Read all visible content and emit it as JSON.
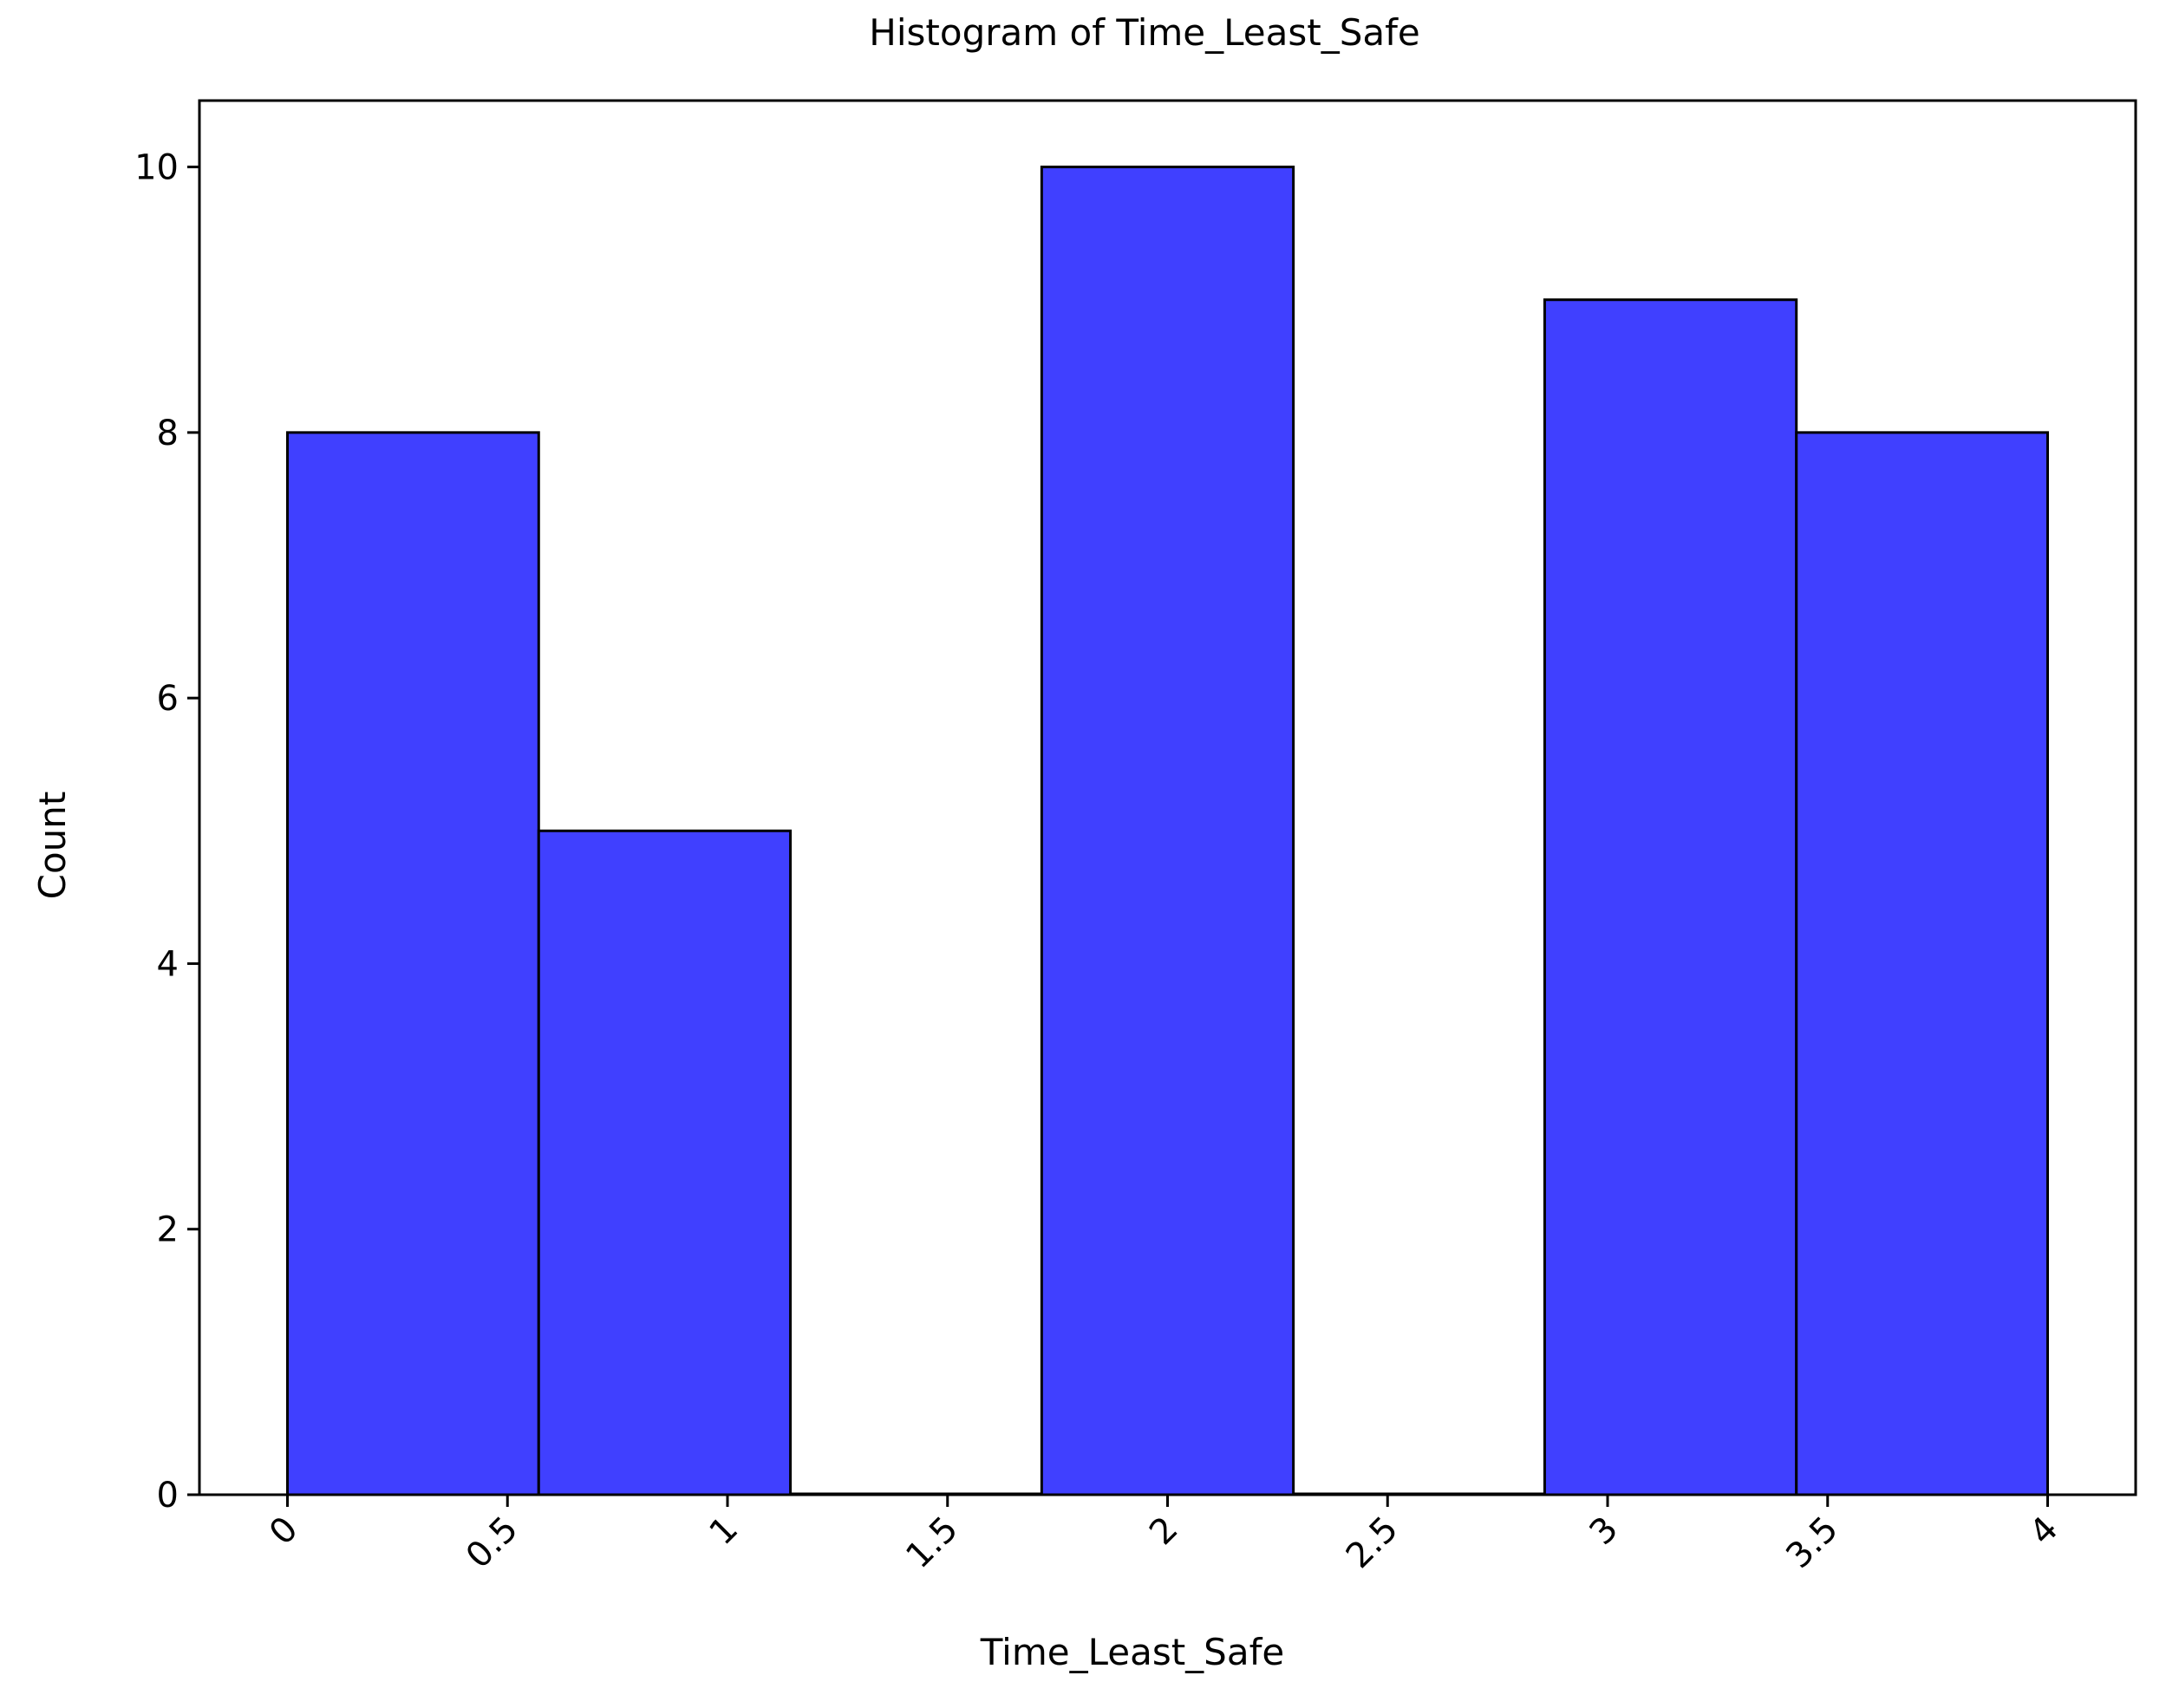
{
  "chart_data": {
    "type": "bar",
    "title": "Histogram of Time_Least_Safe",
    "xlabel": "Time_Least_Safe",
    "ylabel": "Count",
    "bins": [
      {
        "start": 0.0,
        "end": 0.571,
        "count": 8
      },
      {
        "start": 0.571,
        "end": 1.143,
        "count": 5
      },
      {
        "start": 1.143,
        "end": 1.714,
        "count": 0
      },
      {
        "start": 1.714,
        "end": 2.286,
        "count": 10
      },
      {
        "start": 2.286,
        "end": 2.857,
        "count": 0
      },
      {
        "start": 2.857,
        "end": 3.429,
        "count": 9
      },
      {
        "start": 3.429,
        "end": 4.0,
        "count": 8
      }
    ],
    "xlim": [
      -0.2,
      4.2
    ],
    "ylim": [
      0,
      10.5
    ],
    "xticks": [
      0,
      0.5,
      1,
      1.5,
      2,
      2.5,
      3,
      3.5,
      4
    ],
    "xtick_labels": [
      "0",
      "0.5",
      "1",
      "1.5",
      "2",
      "2.5",
      "3",
      "3.5",
      "4"
    ],
    "yticks": [
      0,
      2,
      4,
      6,
      8,
      10
    ],
    "ytick_labels": [
      "0",
      "2",
      "4",
      "6",
      "8",
      "10"
    ],
    "xtick_rotation_deg": -45,
    "grid": false,
    "legend": "none",
    "colors": {
      "bar_fill": "#4040ff",
      "bar_edge": "#000000",
      "background": "#ffffff"
    }
  }
}
